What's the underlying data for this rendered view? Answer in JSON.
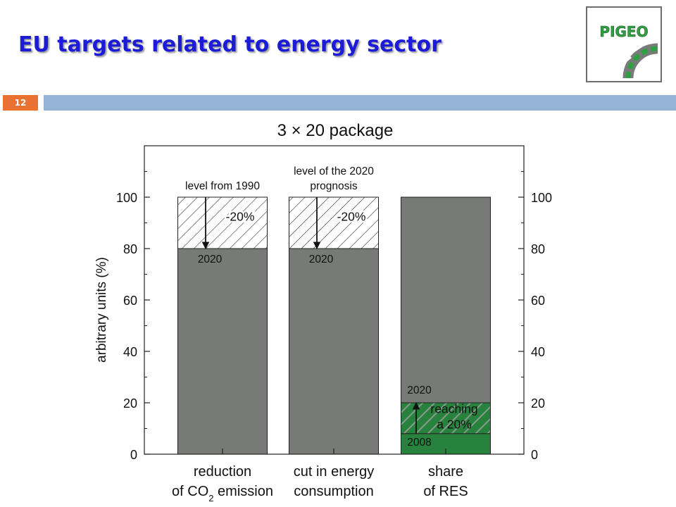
{
  "slide": {
    "title": "EU targets related to energy sector",
    "page_number": "12",
    "logo_text": "PIGEO"
  },
  "colors": {
    "bar_gray": "#777a76",
    "res_green": "#27823d",
    "title_blue": "#1c1cd6",
    "badge_orange": "#e97132",
    "header_bar": "#95b3d7"
  },
  "chart_data": {
    "type": "bar",
    "title": "3 × 20 package",
    "ylabel": "arbitrary units (%)",
    "xlabel": "",
    "ylim": [
      0,
      120
    ],
    "yticks": [
      0,
      20,
      40,
      60,
      80,
      100
    ],
    "grid": false,
    "right_axis_mirrored": true,
    "categories": [
      {
        "line1": "reduction",
        "line2_pre": "of CO",
        "line2_sub": "2",
        "line2_post": " emission"
      },
      {
        "line1": "cut in energy",
        "line2_pre": "consumption",
        "line2_sub": "",
        "line2_post": ""
      },
      {
        "line1": "share",
        "line2_pre": "of RES",
        "line2_sub": "",
        "line2_post": ""
      }
    ],
    "bars": [
      {
        "solid": 80,
        "solid_color": "#777a76",
        "hatched": [
          80,
          100
        ],
        "hatch_style": "white",
        "arrow": {
          "from": 100,
          "to": 80
        },
        "top_label": [
          "level from 1990"
        ],
        "change_label": "-20%",
        "year_label": "2020"
      },
      {
        "solid": 80,
        "solid_color": "#777a76",
        "hatched": [
          80,
          100
        ],
        "hatch_style": "white",
        "arrow": {
          "from": 100,
          "to": 80
        },
        "top_label": [
          "level of the 2020",
          "prognosis"
        ],
        "change_label": "-20%",
        "year_label": "2020"
      },
      {
        "background": 100,
        "background_color": "#777a76",
        "solid": 8,
        "solid_color": "#27823d",
        "hatched": [
          8,
          20
        ],
        "hatch_style": "green",
        "arrow": {
          "from": 8,
          "to": 20
        },
        "change_label_lines": [
          "reaching",
          "a 20%"
        ],
        "year_top_label": "2020",
        "year_bottom_label": "2008"
      }
    ]
  }
}
